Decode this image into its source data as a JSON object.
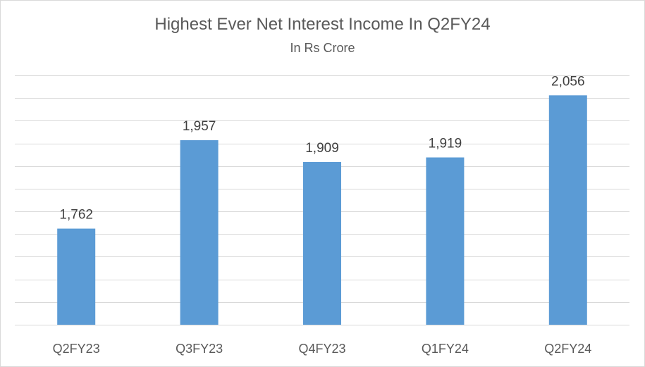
{
  "chart_data": {
    "type": "bar",
    "title": "Highest Ever Net Interest Income In Q2FY24",
    "subtitle": "In Rs Crore",
    "categories": [
      "Q2FY23",
      "Q3FY23",
      "Q4FY23",
      "Q1FY24",
      "Q2FY24"
    ],
    "values": [
      1762,
      1957,
      1909,
      1919,
      2056
    ],
    "value_labels": [
      "1,762",
      "1,957",
      "1,909",
      "1,919",
      "2,056"
    ],
    "ylim": [
      1550,
      2100
    ],
    "y_gridline_step": 50,
    "grid": true,
    "y_axis_labels_shown": false,
    "legend": "none",
    "bar_color": "#5b9bd5",
    "grid_color": "#d9d9d9",
    "text_color": "#595959"
  }
}
